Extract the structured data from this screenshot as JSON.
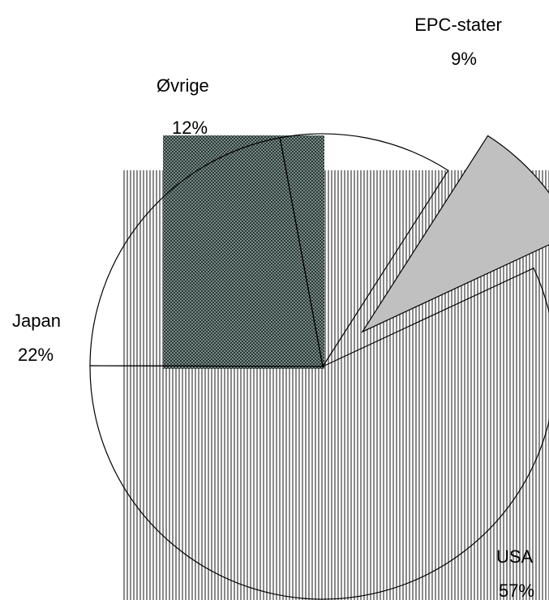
{
  "chart_data": {
    "type": "pie",
    "title": "",
    "categories": [
      "USA",
      "Japan",
      "Øvrige",
      "EPC-stater"
    ],
    "values": [
      57,
      22,
      12,
      9
    ],
    "labels": {
      "usa": {
        "name": "USA",
        "pct": "57%"
      },
      "japan": {
        "name": "Japan",
        "pct": "22%"
      },
      "ovrige": {
        "name": "Øvrige",
        "pct": "12%"
      },
      "epc": {
        "name": "EPC-stater",
        "pct": "9%"
      }
    },
    "legend": "none",
    "exploded": "EPC-stater"
  }
}
